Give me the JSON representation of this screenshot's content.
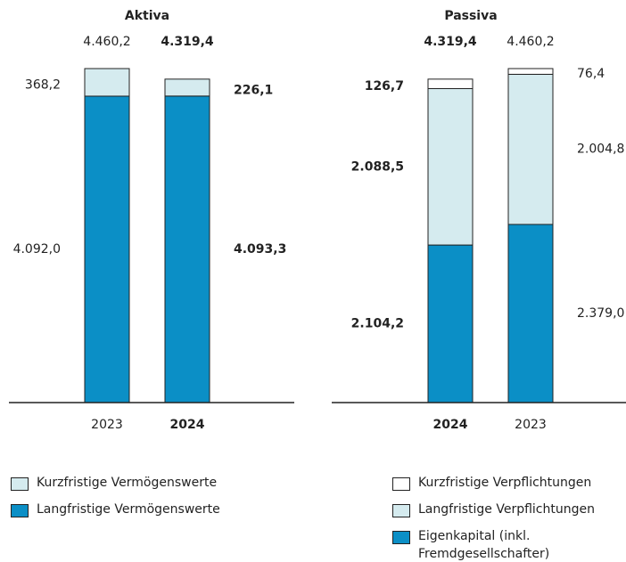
{
  "chart_data": [
    {
      "type": "stacked_bar",
      "title": "Aktiva",
      "categories": [
        "2023",
        "2024"
      ],
      "highlight": [
        false,
        true
      ],
      "totals": [
        4460.2,
        4319.4
      ],
      "total_labels": [
        "4.460,2",
        "4.319,4"
      ],
      "series": [
        {
          "name": "Langfristige Vermögenswerte",
          "color": "#0b8fc6",
          "values": [
            4092.0,
            4093.3
          ],
          "value_labels": [
            "4.092,0",
            "4.093,3"
          ]
        },
        {
          "name": "Kurzfristige Vermögenswerte",
          "color": "#d5ebef",
          "values": [
            368.2,
            226.1
          ],
          "value_labels": [
            "368,2",
            "226,1"
          ]
        }
      ]
    },
    {
      "type": "stacked_bar",
      "title": "Passiva",
      "categories": [
        "2024",
        "2023"
      ],
      "highlight": [
        true,
        false
      ],
      "totals": [
        4319.4,
        4460.2
      ],
      "total_labels": [
        "4.319,4",
        "4.460,2"
      ],
      "series": [
        {
          "name": "Eigenkapital (inkl. Fremdgesellschafter)",
          "color": "#0b8fc6",
          "values": [
            2104.2,
            2379.0
          ],
          "value_labels": [
            "2.104,2",
            "2.379,0"
          ]
        },
        {
          "name": "Langfristige Verpflichtungen",
          "color": "#d5ebef",
          "values": [
            2088.5,
            2004.8
          ],
          "value_labels": [
            "2.088,5",
            "2.004,8"
          ]
        },
        {
          "name": "Kurzfristige Verpflichtungen",
          "color": "#ffffff",
          "values": [
            126.7,
            76.4
          ],
          "value_labels": [
            "126,7",
            "76,4"
          ]
        }
      ]
    }
  ]
}
